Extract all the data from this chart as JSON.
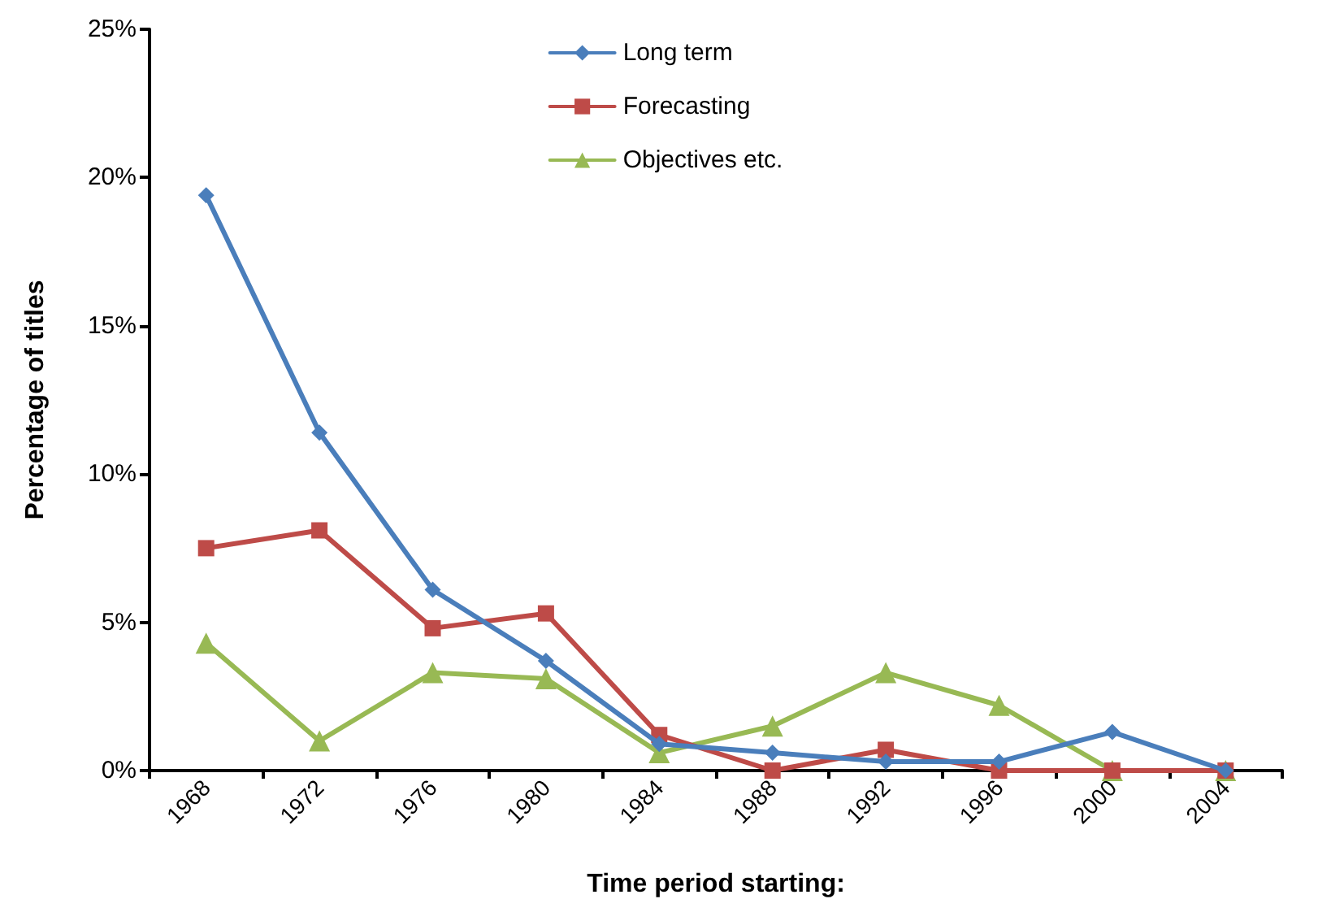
{
  "chart_data": {
    "type": "line",
    "xlabel": "Time period starting:",
    "ylabel": "Percentage of titles",
    "categories": [
      "1968",
      "1972",
      "1976",
      "1980",
      "1984",
      "1988",
      "1992",
      "1996",
      "2000",
      "2004"
    ],
    "series": [
      {
        "name": "Long term",
        "color": "#4a7ebb",
        "marker": "diamond",
        "values": [
          19.4,
          11.4,
          6.1,
          3.7,
          0.9,
          0.6,
          0.3,
          0.3,
          1.3,
          0
        ]
      },
      {
        "name": "Forecasting",
        "color": "#be4b48",
        "marker": "square",
        "values": [
          7.5,
          8.1,
          4.8,
          5.3,
          1.2,
          0,
          0.7,
          0,
          0,
          0
        ]
      },
      {
        "name": "Objectives etc.",
        "color": "#98b954",
        "marker": "triangle",
        "values": [
          4.3,
          1.0,
          3.3,
          3.1,
          0.6,
          1.5,
          3.3,
          2.2,
          0,
          0
        ]
      }
    ],
    "ylim": [
      0,
      25
    ],
    "yticks": [
      {
        "value": 0,
        "label": "0%"
      },
      {
        "value": 5,
        "label": "5%"
      },
      {
        "value": 10,
        "label": "10%"
      },
      {
        "value": 15,
        "label": "15%"
      },
      {
        "value": 20,
        "label": "20%"
      },
      {
        "value": 25,
        "label": "25%"
      }
    ],
    "grid": false,
    "legend": "top",
    "line_style": "solid"
  }
}
